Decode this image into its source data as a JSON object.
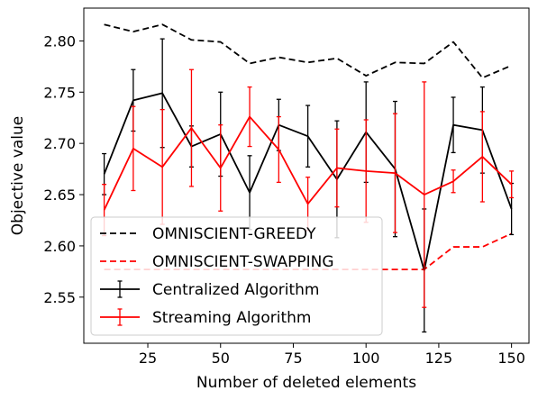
{
  "chart_data": {
    "type": "line",
    "xlabel": "Number of deleted elements",
    "ylabel": "Objective value",
    "xlim": [
      3,
      156
    ],
    "ylim": [
      2.505,
      2.832
    ],
    "x_ticks": [
      25,
      50,
      75,
      100,
      125,
      150
    ],
    "x_tick_labels": [
      "25",
      "50",
      "75",
      "100",
      "125",
      "150"
    ],
    "y_ticks": [
      2.55,
      2.6,
      2.65,
      2.7,
      2.75,
      2.8
    ],
    "y_tick_labels": [
      "2.55",
      "2.60",
      "2.65",
      "2.70",
      "2.75",
      "2.80"
    ],
    "x": [
      10,
      20,
      30,
      40,
      50,
      60,
      70,
      80,
      90,
      100,
      110,
      120,
      130,
      140,
      150
    ],
    "legend_position": "lower-left",
    "series": [
      {
        "name": "OMNISCIENT-GREEDY",
        "color": "#000000",
        "style": "dashed",
        "values": [
          2.816,
          2.809,
          2.816,
          2.801,
          2.799,
          2.778,
          2.784,
          2.779,
          2.783,
          2.766,
          2.779,
          2.778,
          2.799,
          2.764,
          2.776
        ]
      },
      {
        "name": "OMNISCIENT-SWAPPING",
        "color": "#ff0000",
        "style": "dashed",
        "values": [
          2.577,
          2.577,
          2.577,
          2.577,
          2.577,
          2.577,
          2.577,
          2.577,
          2.577,
          2.577,
          2.577,
          2.577,
          2.599,
          2.599,
          2.612
        ]
      },
      {
        "name": "Centralized Algorithm",
        "color": "#000000",
        "style": "solid",
        "values": [
          2.67,
          2.742,
          2.749,
          2.697,
          2.709,
          2.652,
          2.718,
          2.707,
          2.665,
          2.711,
          2.675,
          2.576,
          2.718,
          2.713,
          2.636
        ],
        "errors": [
          0.02,
          0.03,
          0.053,
          0.02,
          0.041,
          0.036,
          0.025,
          0.03,
          0.057,
          0.049,
          0.066,
          0.06,
          0.027,
          0.042,
          0.025
        ]
      },
      {
        "name": "Streaming Algorithm",
        "color": "#ff0000",
        "style": "solid",
        "values": [
          2.635,
          2.695,
          2.677,
          2.715,
          2.676,
          2.726,
          2.694,
          2.641,
          2.676,
          2.673,
          2.671,
          2.65,
          2.663,
          2.687,
          2.66
        ],
        "errors": [
          0.025,
          0.041,
          0.056,
          0.057,
          0.042,
          0.029,
          0.032,
          0.026,
          0.038,
          0.05,
          0.058,
          0.11,
          0.011,
          0.044,
          0.013
        ]
      }
    ]
  }
}
